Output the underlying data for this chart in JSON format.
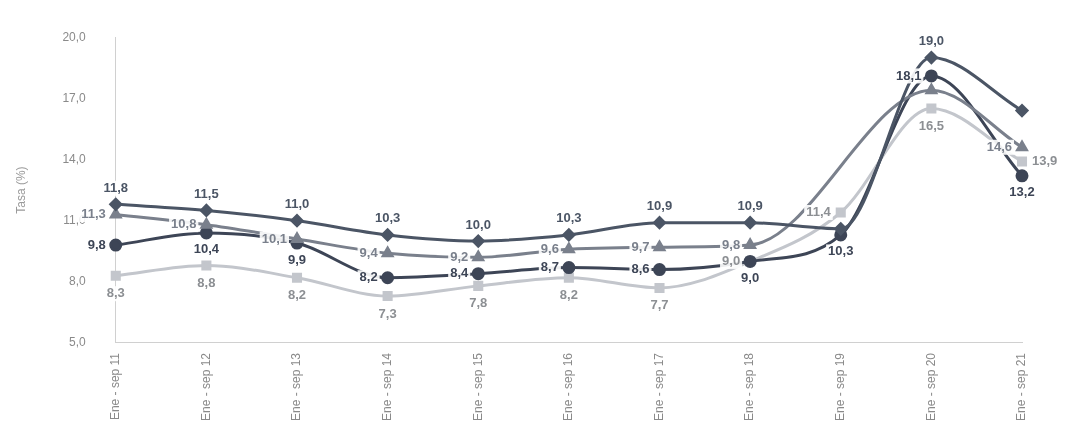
{
  "chart_data": {
    "type": "line",
    "ylabel": "Tasa (%)",
    "categories": [
      "Ene - sep 11",
      "Ene - sep 12",
      "Ene - sep 13",
      "Ene - sep 14",
      "Ene - sep 15",
      "Ene - sep 16",
      "Ene - sep 17",
      "Ene - sep 18",
      "Ene - sep 19",
      "Ene - sep 20",
      "Ene - sep 21"
    ],
    "series": [
      {
        "color": "#4b5565",
        "marker": "diamond",
        "values": [
          11.8,
          11.5,
          11.0,
          10.3,
          10.0,
          10.3,
          10.9,
          10.9,
          10.6,
          19.0,
          16.4
        ],
        "value_labels": [
          "11,8",
          "11,5",
          "11,0",
          "10,3",
          "10,0",
          "10,3",
          "10,9",
          "10,9",
          null,
          "19,0",
          null
        ]
      },
      {
        "color": "#7a808c",
        "marker": "triangle",
        "values": [
          11.3,
          10.8,
          10.1,
          9.4,
          9.2,
          9.6,
          9.7,
          9.8,
          null,
          17.4,
          14.6
        ],
        "value_labels": [
          "11,3",
          "10,8",
          "10,1",
          "9,4",
          "9,2",
          "9,6",
          "9,7",
          "9,8",
          null,
          null,
          "14,6"
        ]
      },
      {
        "color": "#3d4556",
        "marker": "circle",
        "values": [
          9.8,
          10.4,
          9.9,
          8.2,
          8.4,
          8.7,
          8.6,
          9.0,
          10.3,
          18.1,
          13.2
        ],
        "value_labels": [
          "9,8",
          "10,4",
          "9,9",
          "8,2",
          "8,4",
          "8,7",
          "8,6",
          "9,0",
          "10,3",
          "18,1",
          "13,2"
        ]
      },
      {
        "color": "#c3c6cc",
        "marker": "square",
        "values": [
          8.3,
          8.8,
          8.2,
          7.3,
          7.8,
          8.2,
          7.7,
          9.0,
          11.4,
          16.5,
          13.9
        ],
        "value_labels": [
          "8,3",
          "8,8",
          "8,2",
          "7,3",
          "7,8",
          "8,2",
          "7,7",
          "9,0",
          "11,4",
          "16,5",
          "13,9"
        ]
      }
    ],
    "ylim": [
      5,
      20
    ],
    "yticks": [
      {
        "value": 5,
        "label": "5,0"
      },
      {
        "value": 8,
        "label": "8,0"
      },
      {
        "value": 11,
        "label": "11,0"
      },
      {
        "value": 14,
        "label": "14,0"
      },
      {
        "value": 17,
        "label": "17,0"
      },
      {
        "value": 20,
        "label": "20,0"
      }
    ],
    "grid": false,
    "legend": false
  }
}
